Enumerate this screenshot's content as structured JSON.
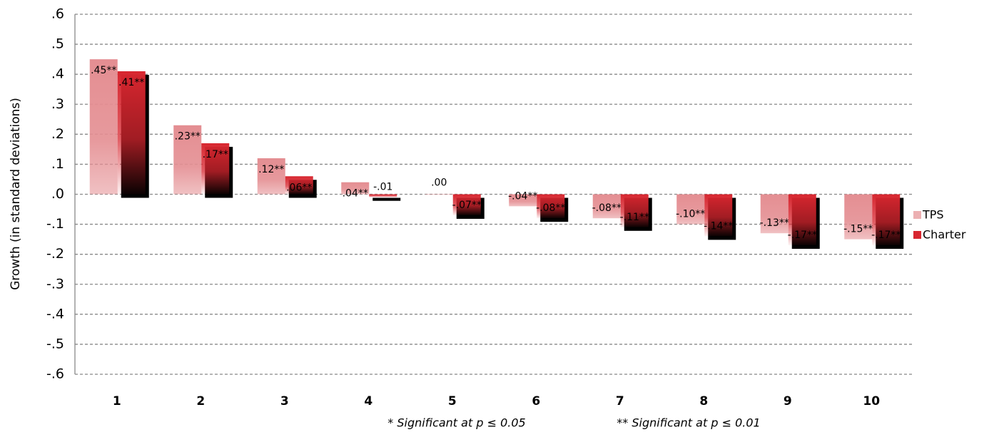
{
  "chart_data": {
    "type": "bar",
    "y_label": "Growth (in standard deviations)",
    "footnotes": [
      "* Significant at p ≤ 0.05",
      "** Significant at p ≤ 0.01"
    ],
    "categories": [
      "1",
      "2",
      "3",
      "4",
      "5",
      "6",
      "7",
      "8",
      "9",
      "10"
    ],
    "series": [
      {
        "name": "TPS",
        "color": "#e48e92",
        "values": [
          0.45,
          0.23,
          0.12,
          0.04,
          0.0,
          -0.04,
          -0.08,
          -0.1,
          -0.13,
          -0.15
        ],
        "value_labels": [
          ".45**",
          ".23**",
          ".12**",
          ".04**",
          ".00",
          "-.04**",
          "-.08**",
          "-.10**",
          "-.13**",
          "-.15**"
        ]
      },
      {
        "name": "Charter",
        "color": "#d7262f",
        "values": [
          0.41,
          0.17,
          0.06,
          -0.01,
          -0.07,
          -0.08,
          -0.11,
          -0.14,
          -0.17,
          -0.17
        ],
        "value_labels": [
          ".41**",
          ".17**",
          ".06**",
          "-.01",
          "-.07**",
          "-.08**",
          "-.11**",
          "-.14**",
          "-.17**",
          "-.17**"
        ]
      }
    ],
    "ylim": [
      -0.6,
      0.6
    ],
    "yticks": [
      {
        "value": 0.6,
        "label": ".6"
      },
      {
        "value": 0.5,
        "label": ".5"
      },
      {
        "value": 0.4,
        "label": ".4"
      },
      {
        "value": 0.3,
        "label": ".3"
      },
      {
        "value": 0.2,
        "label": ".2"
      },
      {
        "value": 0.1,
        "label": ".1"
      },
      {
        "value": 0.0,
        "label": ".0"
      },
      {
        "value": -0.1,
        "label": "-.1"
      },
      {
        "value": -0.2,
        "label": "-.2"
      },
      {
        "value": -0.3,
        "label": "-.3"
      },
      {
        "value": -0.4,
        "label": "-.4"
      },
      {
        "value": -0.5,
        "label": "-.5"
      },
      {
        "value": -0.6,
        "label": "-.6"
      }
    ],
    "grid": true,
    "legend": "right"
  }
}
